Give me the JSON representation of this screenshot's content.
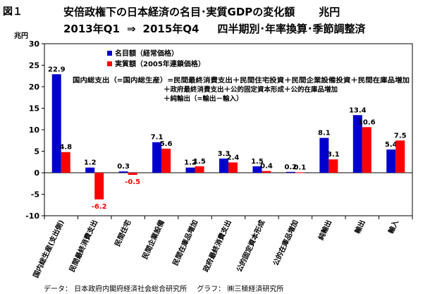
{
  "figure_label": "図１",
  "title_line1_main": "安倍政権下の日本経済の名目･実質GDPの変化額",
  "title_line1_unit": "兆円",
  "title_line2_period_start": "2013年Q1",
  "title_line2_arrow": "⇒",
  "title_line2_period_end": "2015年Q4",
  "title_line2_method": "四半期別･年率換算･季節調整済",
  "footer_data": "データ：  日本政府内閣府経済社会総合研究所",
  "footer_graph": "グラフ：  ㈱三極経済研究所",
  "chart_data": {
    "type": "bar",
    "ylabel": "兆円",
    "ylim": [
      -10,
      30
    ],
    "yticks": [
      -10,
      -5,
      0,
      5,
      10,
      15,
      20,
      25,
      30
    ],
    "legend_position": "top-left",
    "categories": [
      "国内総生産(支出側)",
      "民間最終消費支出",
      "民間住宅",
      "民間企業設備",
      "民間在庫品増加",
      "政府最終消費支出",
      "公的固定資本形成",
      "公的在庫品増加",
      "純輸出",
      "輸出",
      "輸入"
    ],
    "series": [
      {
        "name": "名目額（経常価格）",
        "color": "#0000cc",
        "values": [
          22.9,
          1.2,
          0.3,
          7.1,
          1.2,
          3.3,
          1.5,
          0.2,
          8.1,
          13.4,
          5.4
        ],
        "labels": [
          "22.9",
          "1.2",
          "0.3",
          "7.1",
          "1.2",
          "3.3",
          "1.5",
          "0.2",
          "8.1",
          "13.4",
          "5.4"
        ]
      },
      {
        "name": "実質額（2005年連鎖価格）",
        "color": "#ff0000",
        "values": [
          4.8,
          -6.2,
          -0.5,
          5.6,
          1.5,
          2.4,
          0.4,
          0.1,
          3.1,
          10.6,
          7.5
        ],
        "labels": [
          "4.8",
          "-6.2",
          "-0.5",
          "5.6",
          "1.5",
          "2.4",
          "0.4",
          "0.1",
          "3.1",
          "10.6",
          "7.5"
        ]
      }
    ],
    "annotation_lines": [
      "国内総支出（=国内総生産）=民間最終消費支出＋民間住宅投資＋民間企業設備投資＋民間在庫品増加",
      "＋政府最終消費支出＋公的固定資本形成＋公的在庫品増加",
      "＋純輸出（=輸出－輸入）"
    ]
  }
}
